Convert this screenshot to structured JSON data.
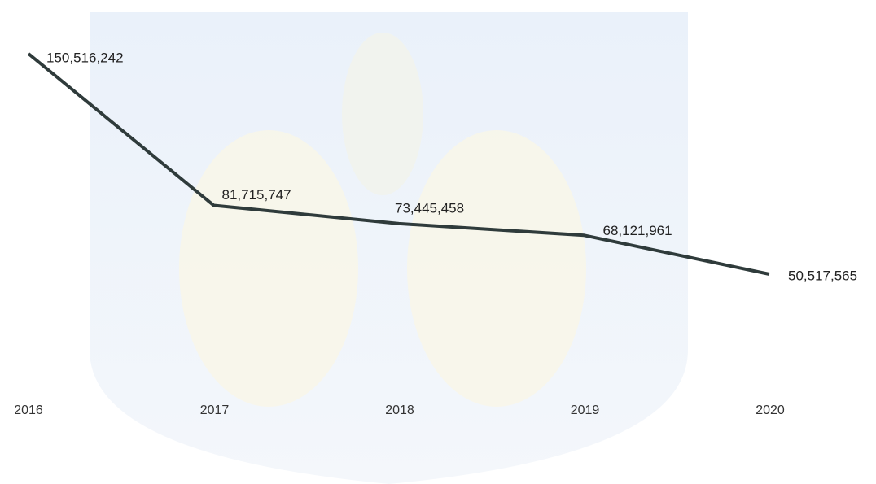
{
  "chart_data": {
    "type": "line",
    "categories": [
      "2016",
      "2017",
      "2018",
      "2019",
      "2020"
    ],
    "series": [
      {
        "color": "#2f3b3b",
        "values": [
          150516242,
          81715747,
          73445458,
          68121961,
          50517565
        ],
        "value_labels": [
          "150,516,242",
          "81,715,747",
          "73,445,458",
          "68,121,961",
          "50,517,565"
        ]
      }
    ]
  }
}
